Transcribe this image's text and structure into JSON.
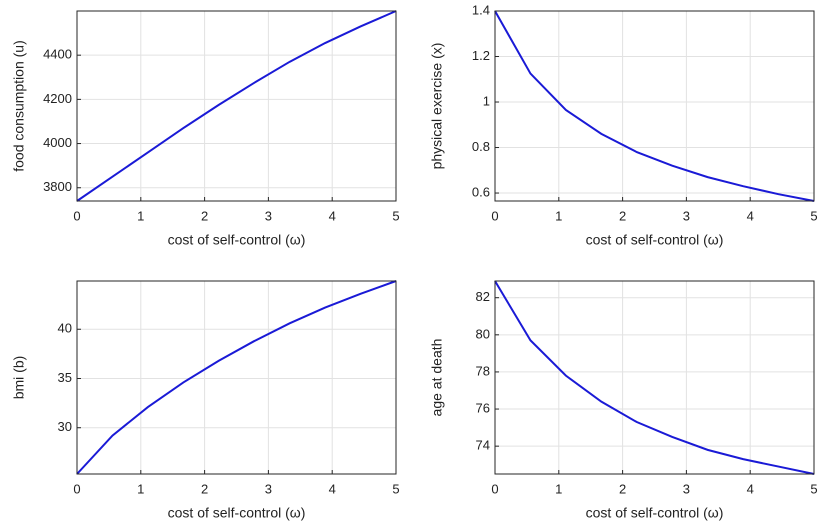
{
  "chart_data": [
    {
      "type": "line",
      "xlabel": "cost of self-control (ω)",
      "ylabel": "food consumption (u)",
      "x": [
        0,
        0.556,
        1.111,
        1.667,
        2.222,
        2.778,
        3.333,
        3.889,
        4.444,
        5
      ],
      "values": [
        3740,
        3850,
        3960,
        4070,
        4175,
        4275,
        4370,
        4455,
        4530,
        4600
      ],
      "color": "#1a1ad6",
      "xlim": [
        0,
        5
      ],
      "xticks": [
        0,
        1,
        2,
        3,
        4,
        5
      ],
      "ylim": [
        3740,
        4600
      ],
      "yticks": [
        3800,
        4000,
        4200,
        4400
      ],
      "grid": true
    },
    {
      "type": "line",
      "xlabel": "cost of self-control (ω)",
      "ylabel": "physical exercise (x)",
      "x": [
        0,
        0.556,
        1.111,
        1.667,
        2.222,
        2.778,
        3.333,
        3.889,
        4.444,
        5
      ],
      "values": [
        1.4,
        1.125,
        0.965,
        0.86,
        0.78,
        0.72,
        0.67,
        0.63,
        0.595,
        0.565
      ],
      "color": "#1a1ad6",
      "xlim": [
        0,
        5
      ],
      "xticks": [
        0,
        1,
        2,
        3,
        4,
        5
      ],
      "ylim": [
        0.565,
        1.4
      ],
      "yticks": [
        0.6,
        0.8,
        1,
        1.2,
        1.4
      ],
      "grid": true
    },
    {
      "type": "line",
      "xlabel": "cost of self-control (ω)",
      "ylabel": "bmi (b)",
      "x": [
        0,
        0.556,
        1.111,
        1.667,
        2.222,
        2.778,
        3.333,
        3.889,
        4.444,
        5
      ],
      "values": [
        25.3,
        29.2,
        32.1,
        34.6,
        36.8,
        38.8,
        40.6,
        42.2,
        43.6,
        44.9
      ],
      "color": "#1a1ad6",
      "xlim": [
        0,
        5
      ],
      "xticks": [
        0,
        1,
        2,
        3,
        4,
        5
      ],
      "ylim": [
        25.3,
        44.9
      ],
      "yticks": [
        30,
        35,
        40
      ],
      "grid": true
    },
    {
      "type": "line",
      "xlabel": "cost of self-control (ω)",
      "ylabel": "age at death",
      "x": [
        0,
        0.556,
        1.111,
        1.667,
        2.222,
        2.778,
        3.333,
        3.889,
        4.444,
        5
      ],
      "values": [
        82.9,
        79.7,
        77.8,
        76.4,
        75.3,
        74.5,
        73.8,
        73.3,
        72.9,
        72.5
      ],
      "color": "#1a1ad6",
      "xlim": [
        0,
        5
      ],
      "xticks": [
        0,
        1,
        2,
        3,
        4,
        5
      ],
      "ylim": [
        72.5,
        82.9
      ],
      "yticks": [
        74,
        76,
        78,
        80,
        82
      ],
      "grid": true
    }
  ]
}
